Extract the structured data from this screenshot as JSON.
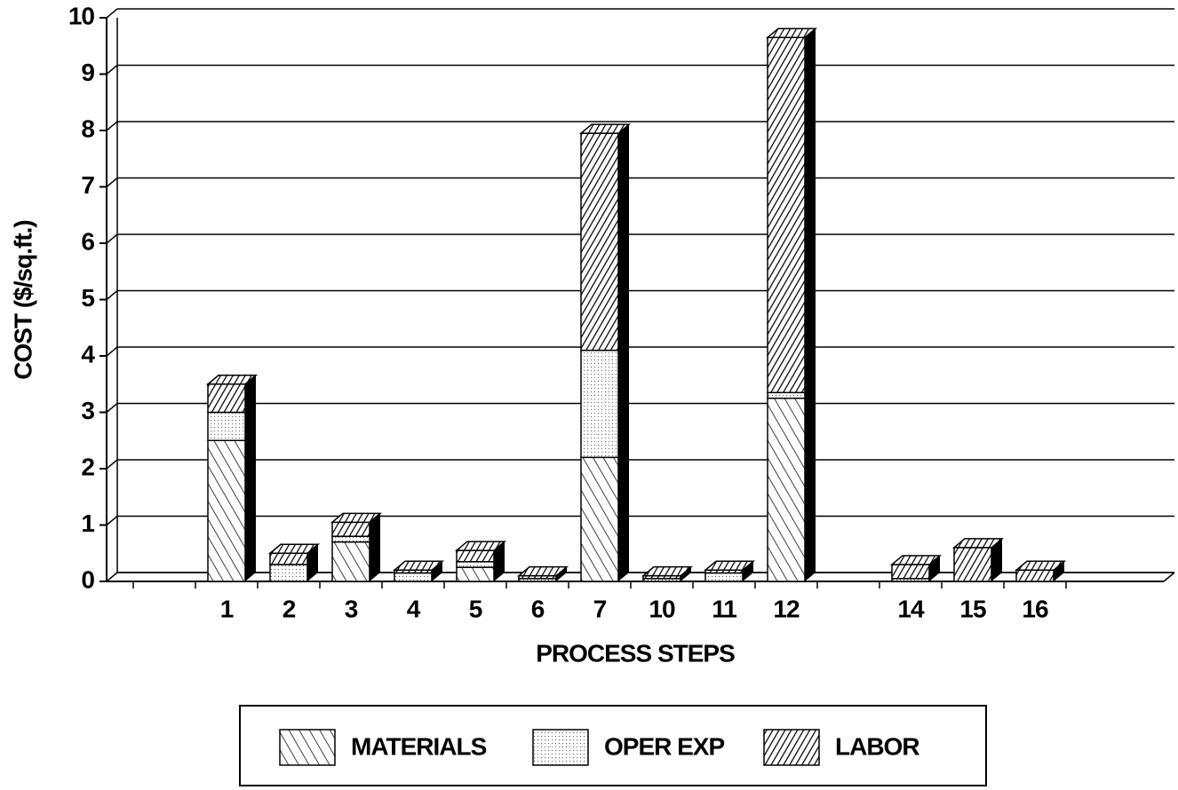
{
  "chart_data": {
    "type": "stacked_bar",
    "y_label": "COST ($/sq.ft.)",
    "x_label": "PROCESS STEPS",
    "categories": [
      null,
      "1",
      "2",
      "3",
      "4",
      "5",
      "6",
      "7",
      "10",
      "11",
      "12",
      null,
      "14",
      "15",
      "16",
      null
    ],
    "series": [
      {
        "name": "MATERIALS",
        "color": "#000000",
        "values": [
          null,
          2.5,
          0,
          0.7,
          0,
          0.25,
          0,
          2.2,
          0,
          0,
          3.25,
          null,
          0,
          0,
          0,
          null
        ]
      },
      {
        "name": "OPER EXP",
        "color": "#000000",
        "values": [
          null,
          0.5,
          0.3,
          0.1,
          0.15,
          0.1,
          0.05,
          1.9,
          0.05,
          0.15,
          0.1,
          null,
          0.05,
          0,
          0,
          null
        ]
      },
      {
        "name": "LABOR",
        "color": "#000000",
        "values": [
          null,
          0.5,
          0.2,
          0.25,
          0.05,
          0.2,
          0.05,
          3.85,
          0.05,
          0.05,
          6.3,
          null,
          0.25,
          0.6,
          0.2,
          null
        ]
      }
    ],
    "ylim": [
      0,
      10
    ],
    "yticks": [
      0,
      1,
      2,
      3,
      4,
      5,
      6,
      7,
      8,
      9,
      10
    ],
    "grid": true
  }
}
